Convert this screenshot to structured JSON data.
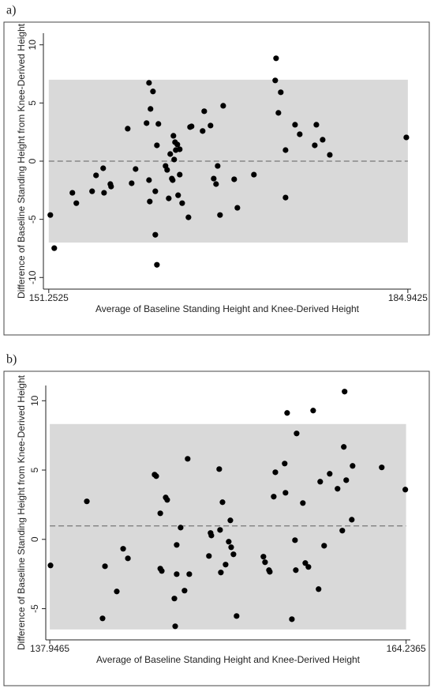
{
  "chart_data": [
    {
      "type": "scatter",
      "label": "a)",
      "xlabel": "Average of Baseline Standing Height and Knee-Derived Height",
      "ylabel": "Difference of Baseline Standing Height from Knee-Derived Height",
      "xlim": [
        150.75,
        185.25
      ],
      "xticks": [
        151.2525,
        184.9425
      ],
      "ylim": [
        -11,
        11
      ],
      "yticks": [
        -10,
        -5,
        0,
        5,
        10
      ],
      "mean_difference": 0,
      "limits_of_agreement": [
        -7,
        7
      ],
      "color": "#000000",
      "band_color": "#d9d9d9",
      "x": [
        151.4,
        151.77,
        153.47,
        153.84,
        155.32,
        155.69,
        156.36,
        156.44,
        157.03,
        157.1,
        158.66,
        159.03,
        159.4,
        160.43,
        160.66,
        160.66,
        160.73,
        160.8,
        161.03,
        161.25,
        161.4,
        161.54,
        161.25,
        161.4,
        162.21,
        162.36,
        162.51,
        162.65,
        162.8,
        162.95,
        162.88,
        163.02,
        163.1,
        163.17,
        163.32,
        163.39,
        163.54,
        163.54,
        163.77,
        164.36,
        164.51,
        164.65,
        165.69,
        165.84,
        166.43,
        166.73,
        166.95,
        167.1,
        167.32,
        167.62,
        168.65,
        168.95,
        170.5,
        172.5,
        172.58,
        172.8,
        173.02,
        173.47,
        173.47,
        174.36,
        174.8,
        176.21,
        176.36,
        176.95,
        177.62,
        184.8
      ],
      "values": [
        -4.63,
        -7.48,
        -2.72,
        -3.61,
        -2.59,
        -1.22,
        -0.61,
        -2.72,
        -1.97,
        -2.18,
        2.79,
        -1.9,
        -0.68,
        3.27,
        -1.63,
        6.73,
        -3.47,
        4.49,
        5.99,
        -2.59,
        1.36,
        3.2,
        -6.33,
        -8.91,
        -0.41,
        -0.75,
        -3.2,
        0.61,
        -1.5,
        2.18,
        -1.63,
        0.14,
        1.63,
        0.95,
        1.43,
        -2.93,
        1.02,
        -1.16,
        -3.61,
        -4.83,
        2.93,
        2.99,
        2.59,
        4.29,
        3.06,
        -1.5,
        -1.97,
        -0.41,
        -4.63,
        4.76,
        -1.56,
        -4.01,
        -1.16,
        6.94,
        8.84,
        4.15,
        5.92,
        0.95,
        -3.13,
        3.13,
        2.31,
        1.36,
        3.13,
        1.84,
        0.54,
        2.04
      ]
    },
    {
      "type": "scatter",
      "label": "b)",
      "xlabel": "Average of Baseline Standing Height and Knee-Derived Height",
      "ylabel": "Difference of Baseline Standing Height from Knee-Derived Height",
      "xlim": [
        137.65,
        164.55
      ],
      "xticks": [
        137.9465,
        164.2365
      ],
      "ylim": [
        -7.25,
        11.1
      ],
      "yticks": [
        -5,
        0,
        5,
        10
      ],
      "mean_difference": 0.97,
      "limits_of_agreement": [
        -6.5,
        8.32
      ],
      "color": "#000000",
      "band_color": "#d9d9d9",
      "x": [
        138.0,
        140.68,
        142.02,
        141.84,
        142.89,
        143.36,
        143.71,
        145.68,
        145.8,
        146.1,
        146.1,
        146.21,
        146.5,
        146.61,
        147.14,
        147.2,
        147.31,
        147.31,
        147.6,
        147.89,
        148.12,
        148.24,
        149.69,
        149.81,
        149.87,
        150.45,
        150.51,
        150.57,
        150.69,
        150.92,
        151.15,
        151.27,
        151.33,
        151.5,
        151.73,
        153.71,
        153.83,
        154.12,
        154.18,
        154.47,
        154.59,
        155.28,
        155.34,
        155.46,
        155.81,
        156.04,
        156.1,
        156.16,
        156.62,
        156.8,
        157.03,
        157.38,
        157.78,
        157.9,
        158.19,
        158.6,
        159.18,
        159.53,
        159.64,
        159.7,
        159.82,
        160.23,
        160.29,
        162.44,
        164.18
      ],
      "values": [
        -1.88,
        2.74,
        -1.94,
        -5.7,
        -3.76,
        -0.68,
        -1.37,
        4.67,
        4.56,
        1.88,
        -2.11,
        -2.28,
        3.02,
        2.85,
        -4.27,
        -6.27,
        -0.4,
        -2.51,
        0.85,
        -3.7,
        5.81,
        -2.51,
        -1.2,
        0.46,
        0.28,
        5.07,
        0.68,
        -2.39,
        2.68,
        -1.82,
        -0.17,
        1.37,
        -0.57,
        -1.08,
        -5.53,
        -1.25,
        -1.65,
        -2.22,
        -2.34,
        3.08,
        4.84,
        5.47,
        3.36,
        9.12,
        -5.76,
        -0.06,
        -2.22,
        7.64,
        2.62,
        -1.71,
        -1.99,
        9.29,
        -3.59,
        4.16,
        -0.46,
        4.73,
        3.65,
        0.63,
        6.67,
        10.66,
        4.27,
        1.42,
        5.3,
        5.19,
        3.59
      ]
    }
  ]
}
